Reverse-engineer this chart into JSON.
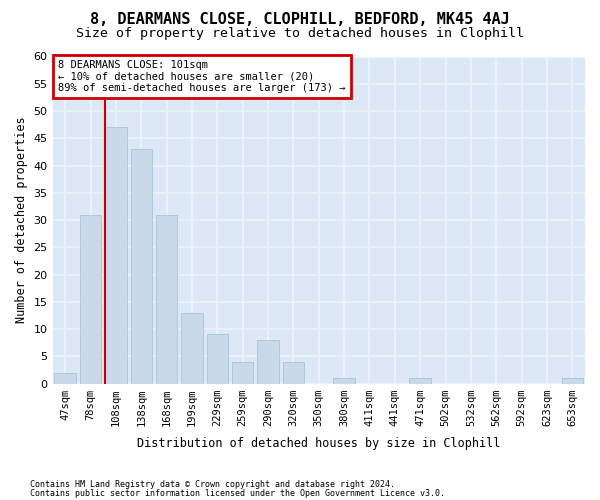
{
  "title": "8, DEARMANS CLOSE, CLOPHILL, BEDFORD, MK45 4AJ",
  "subtitle": "Size of property relative to detached houses in Clophill",
  "xlabel": "Distribution of detached houses by size in Clophill",
  "ylabel": "Number of detached properties",
  "categories": [
    "47sqm",
    "78sqm",
    "108sqm",
    "138sqm",
    "168sqm",
    "199sqm",
    "229sqm",
    "259sqm",
    "290sqm",
    "320sqm",
    "350sqm",
    "380sqm",
    "411sqm",
    "441sqm",
    "471sqm",
    "502sqm",
    "532sqm",
    "562sqm",
    "592sqm",
    "623sqm",
    "653sqm"
  ],
  "values": [
    2,
    31,
    47,
    43,
    31,
    13,
    9,
    4,
    8,
    4,
    0,
    1,
    0,
    0,
    1,
    0,
    0,
    0,
    0,
    0,
    1
  ],
  "bar_color": "#c9d9e8",
  "bar_edgecolor": "#aac4d8",
  "redline_x": 1.575,
  "annotation_title": "8 DEARMANS CLOSE: 101sqm",
  "annotation_line1": "← 10% of detached houses are smaller (20)",
  "annotation_line2": "89% of semi-detached houses are larger (173) →",
  "ylim": [
    0,
    60
  ],
  "yticks": [
    0,
    5,
    10,
    15,
    20,
    25,
    30,
    35,
    40,
    45,
    50,
    55,
    60
  ],
  "footer1": "Contains HM Land Registry data © Crown copyright and database right 2024.",
  "footer2": "Contains public sector information licensed under the Open Government Licence v3.0.",
  "ax_bg_color": "#dce8f5",
  "grid_color": "#eef3f9",
  "redline_color": "#cc0000",
  "box_edgecolor": "#cc0000"
}
